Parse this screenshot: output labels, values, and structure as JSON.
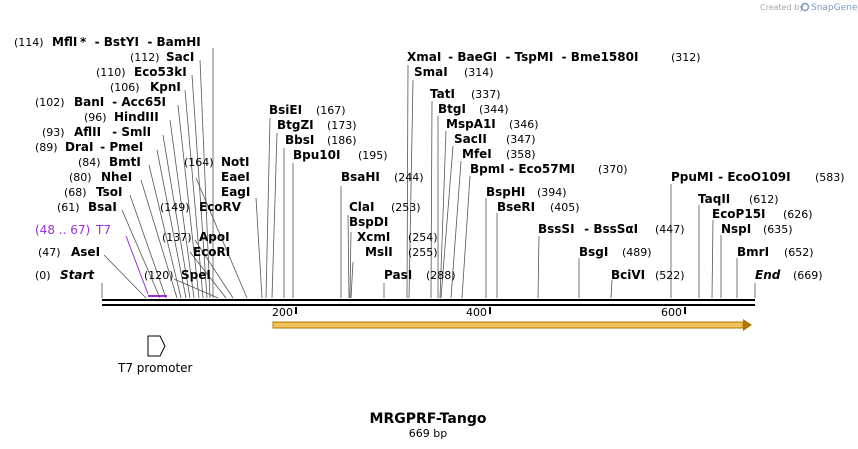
{
  "credit": "Created by",
  "brand": "SnapGene",
  "brand_color": "#7a9cc4",
  "title": "MRGPRF-Tango",
  "subtitle": "669 bp",
  "total_length": 669,
  "scale_ticks": [
    "200",
    "400",
    "600"
  ],
  "feature_t7": {
    "label": "T7",
    "range": "(48 .. 67)",
    "start": 48,
    "end": 67,
    "color": "#9b30d9"
  },
  "t7_promoter": {
    "label": "T7 promoter"
  },
  "orf_color": "#f0a000",
  "sites": [
    {
      "id": "mfli",
      "name": "MflI",
      "extra": "*  - BstYI  - BamHI",
      "pos": "(114)",
      "bp": 114
    },
    {
      "id": "saci",
      "name": "SacI",
      "extra": "",
      "pos": "(112)",
      "bp": 112
    },
    {
      "id": "eco53ki",
      "name": "Eco53kI",
      "extra": "",
      "pos": "(110)",
      "bp": 110
    },
    {
      "id": "kpni",
      "name": "KpnI",
      "extra": "",
      "pos": "(106)",
      "bp": 106
    },
    {
      "id": "bani",
      "name": "BanI",
      "extra": " - Acc65I",
      "pos": "(102)",
      "bp": 102
    },
    {
      "id": "hindiii",
      "name": "HindIII",
      "extra": "",
      "pos": "(96)",
      "bp": 96
    },
    {
      "id": "aflii",
      "name": "AflII",
      "extra": " - SmlI",
      "pos": "(93)",
      "bp": 93
    },
    {
      "id": "drai",
      "name": "DraI",
      "extra": " - PmeI",
      "pos": "(89)",
      "bp": 89
    },
    {
      "id": "bmti",
      "name": "BmtI",
      "extra": "",
      "pos": "(84)",
      "bp": 84
    },
    {
      "id": "nhei",
      "name": "NheI",
      "extra": "",
      "pos": "(80)",
      "bp": 80
    },
    {
      "id": "tsoi",
      "name": "TsoI",
      "extra": "",
      "pos": "(68)",
      "bp": 68
    },
    {
      "id": "bsai",
      "name": "BsaI",
      "extra": "",
      "pos": "(61)",
      "bp": 61
    },
    {
      "id": "asei",
      "name": "AseI",
      "extra": "",
      "pos": "(47)",
      "bp": 47
    },
    {
      "id": "start",
      "name": "Start",
      "extra": "",
      "pos": "(0)",
      "bp": 0
    },
    {
      "id": "spei",
      "name": "SpeI",
      "extra": "",
      "pos": "(120)",
      "bp": 120
    },
    {
      "id": "ecori",
      "name": "EcoRI",
      "extra": "",
      "pos": "",
      "bp": 128
    },
    {
      "id": "apoi",
      "name": "ApoI",
      "extra": "",
      "pos": "(137)",
      "bp": 137
    },
    {
      "id": "ecorv",
      "name": "EcoRV",
      "extra": "",
      "pos": "(149)",
      "bp": 149
    },
    {
      "id": "eagi",
      "name": "EagI",
      "extra": "",
      "pos": "",
      "bp": 164
    },
    {
      "id": "eaei",
      "name": "EaeI",
      "extra": "",
      "pos": "",
      "bp": 164
    },
    {
      "id": "noti",
      "name": "NotI",
      "extra": "",
      "pos": "(164)",
      "bp": 164
    },
    {
      "id": "bsiei",
      "name": "BsiEI",
      "extra": "",
      "pos": "(167)",
      "bp": 167
    },
    {
      "id": "btgzi",
      "name": "BtgZI",
      "extra": "",
      "pos": "(173)",
      "bp": 173
    },
    {
      "id": "bbsi",
      "name": "BbsI",
      "extra": "",
      "pos": "(186)",
      "bp": 186
    },
    {
      "id": "bpu10i",
      "name": "Bpu10I",
      "extra": "",
      "pos": "(195)",
      "bp": 195
    },
    {
      "id": "bsahi",
      "name": "BsaHI",
      "extra": "",
      "pos": "(244)",
      "bp": 244
    },
    {
      "id": "clai",
      "name": "ClaI",
      "extra": "",
      "pos": "(253)",
      "bp": 253
    },
    {
      "id": "bspdi",
      "name": "BspDI",
      "extra": "",
      "pos": "",
      "bp": 253
    },
    {
      "id": "xcmi",
      "name": "XcmI",
      "extra": "",
      "pos": "(254)",
      "bp": 254
    },
    {
      "id": "msli",
      "name": "MslI",
      "extra": "",
      "pos": "(255)",
      "bp": 255
    },
    {
      "id": "pasi",
      "name": "PasI",
      "extra": "",
      "pos": "",
      "bp": 288
    },
    {
      "id": "pasi2",
      "name": "",
      "extra": "",
      "pos": "(288)",
      "bp": 288
    },
    {
      "id": "xmai",
      "name": "XmaI",
      "extra": " - BaeGI  - TspMI  - Bme1580I",
      "pos": "(312)",
      "bp": 312
    },
    {
      "id": "smai",
      "name": "SmaI",
      "extra": "",
      "pos": "(314)",
      "bp": 314
    },
    {
      "id": "tati",
      "name": "TatI",
      "extra": "",
      "pos": "(337)",
      "bp": 337
    },
    {
      "id": "btgi",
      "name": "BtgI",
      "extra": "",
      "pos": "(344)",
      "bp": 344
    },
    {
      "id": "mspa1i",
      "name": "MspA1I",
      "extra": "",
      "pos": "(346)",
      "bp": 346
    },
    {
      "id": "sacii",
      "name": "SacII",
      "extra": "",
      "pos": "(347)",
      "bp": 347
    },
    {
      "id": "mfei",
      "name": "MfeI",
      "extra": "",
      "pos": "(358)",
      "bp": 358
    },
    {
      "id": "bpmi",
      "name": "BpmI",
      "extra": " - Eco57MI",
      "pos": "(370)",
      "bp": 370
    },
    {
      "id": "bsphi",
      "name": "BspHI",
      "extra": "",
      "pos": "(394)",
      "bp": 394
    },
    {
      "id": "bseri",
      "name": "BseRI",
      "extra": "",
      "pos": "(405)",
      "bp": 405
    },
    {
      "id": "bsssi",
      "name": "BssSI",
      "extra": " - BssSαI",
      "pos": "(447)",
      "bp": 447
    },
    {
      "id": "bsgi",
      "name": "BsgI",
      "extra": "",
      "pos": "(489)",
      "bp": 489
    },
    {
      "id": "bcivi",
      "name": "BciVI",
      "extra": "",
      "pos": "(522)",
      "bp": 522
    },
    {
      "id": "ppumi",
      "name": "PpuMI",
      "extra": " - EcoO109I",
      "pos": "(583)",
      "bp": 583
    },
    {
      "id": "taqii",
      "name": "TaqII",
      "extra": "",
      "pos": "(612)",
      "bp": 612
    },
    {
      "id": "ecop15i",
      "name": "EcoP15I",
      "extra": "",
      "pos": "(626)",
      "bp": 626
    },
    {
      "id": "nspi",
      "name": "NspI",
      "extra": "",
      "pos": "(635)",
      "bp": 635
    },
    {
      "id": "bmri",
      "name": "BmrI",
      "extra": "",
      "pos": "(652)",
      "bp": 652
    },
    {
      "id": "end",
      "name": "End",
      "extra": "",
      "pos": "(669)",
      "bp": 669
    }
  ]
}
